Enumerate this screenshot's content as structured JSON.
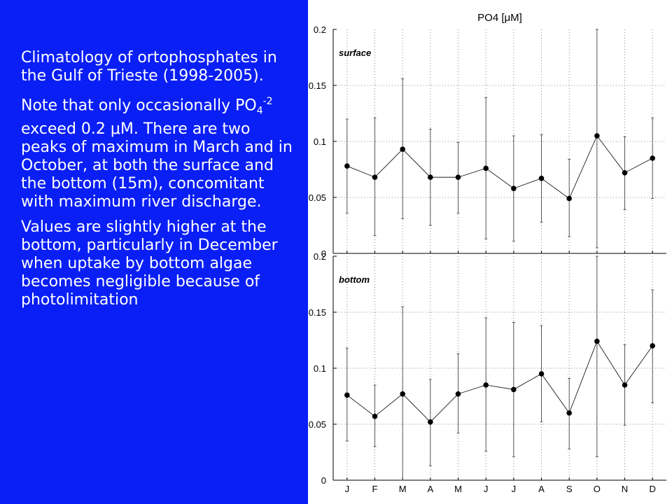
{
  "description": {
    "paragraph1": "Climatology of ortophosphates in the Gulf of Trieste (1998-2005).",
    "paragraph2_before": "Note that only occasionally PO",
    "paragraph2_sub": "4",
    "paragraph2_sup": "-2",
    "paragraph2_after": " exceed 0.2 μM. There are two peaks of maximum in March and in October, at both the surface and the bottom (15m), concomitant with maximum river discharge.",
    "paragraph3": "Values are slightly higher at the bottom, particularly in December when uptake by bottom algae becomes negligible because of photolimitation"
  },
  "chart_data": [
    {
      "type": "line",
      "title": "PO4 [μM]",
      "panel_label": "surface",
      "categories": [
        "J",
        "F",
        "M",
        "A",
        "M",
        "J",
        "J",
        "A",
        "S",
        "O",
        "N",
        "D"
      ],
      "series": [
        {
          "values": [
            0.078,
            0.068,
            0.093,
            0.068,
            0.068,
            0.076,
            0.058,
            0.067,
            0.049,
            0.105,
            0.072,
            0.085
          ],
          "error_low": [
            0.036,
            0.016,
            0.031,
            0.025,
            0.036,
            0.013,
            0.011,
            0.028,
            0.015,
            0.005,
            0.039,
            0.049
          ],
          "error_high": [
            0.12,
            0.121,
            0.156,
            0.111,
            0.099,
            0.139,
            0.105,
            0.106,
            0.084,
            0.2,
            0.104,
            0.121
          ]
        }
      ],
      "ylim": [
        0,
        0.2
      ],
      "yticks": [
        "0",
        "0.05",
        "0.1",
        "0.15",
        "0.2"
      ],
      "grid": true
    },
    {
      "type": "line",
      "panel_label": "bottom",
      "categories": [
        "J",
        "F",
        "M",
        "A",
        "M",
        "J",
        "J",
        "A",
        "S",
        "O",
        "N",
        "D"
      ],
      "series": [
        {
          "values": [
            0.076,
            0.057,
            0.077,
            0.052,
            0.077,
            0.085,
            0.081,
            0.095,
            0.06,
            0.124,
            0.085,
            0.12
          ],
          "error_low": [
            0.035,
            0.03,
            0,
            0.013,
            0.042,
            0.026,
            0.021,
            0.052,
            0.028,
            0.021,
            0.049,
            0.069
          ],
          "error_high": [
            0.118,
            0.085,
            0.155,
            0.09,
            0.113,
            0.145,
            0.141,
            0.138,
            0.091,
            0.2,
            0.121,
            0.17
          ]
        }
      ],
      "ylim": [
        0,
        0.2
      ],
      "yticks": [
        "0",
        "0.05",
        "0.1",
        "0.15",
        "0.2"
      ],
      "grid": true
    }
  ]
}
